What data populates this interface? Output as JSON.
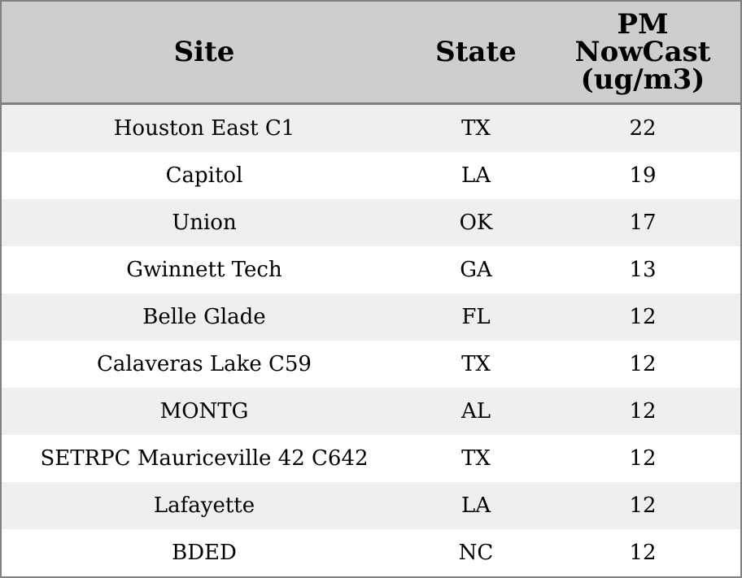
{
  "chart_data": {
    "type": "table",
    "columns": [
      "Site",
      "State",
      "PM\nNowCast\n(ug/m3)"
    ],
    "rows": [
      [
        "Houston East C1",
        "TX",
        "22"
      ],
      [
        "Capitol",
        "LA",
        "19"
      ],
      [
        "Union",
        "OK",
        "17"
      ],
      [
        "Gwinnett Tech",
        "GA",
        "13"
      ],
      [
        "Belle Glade",
        "FL",
        "12"
      ],
      [
        "Calaveras Lake C59",
        "TX",
        "12"
      ],
      [
        "MONTG",
        "AL",
        "12"
      ],
      [
        "SETRPC Mauriceville 42 C642",
        "TX",
        "12"
      ],
      [
        "Lafayette",
        "LA",
        "12"
      ],
      [
        "BDED",
        "NC",
        "12"
      ]
    ]
  }
}
